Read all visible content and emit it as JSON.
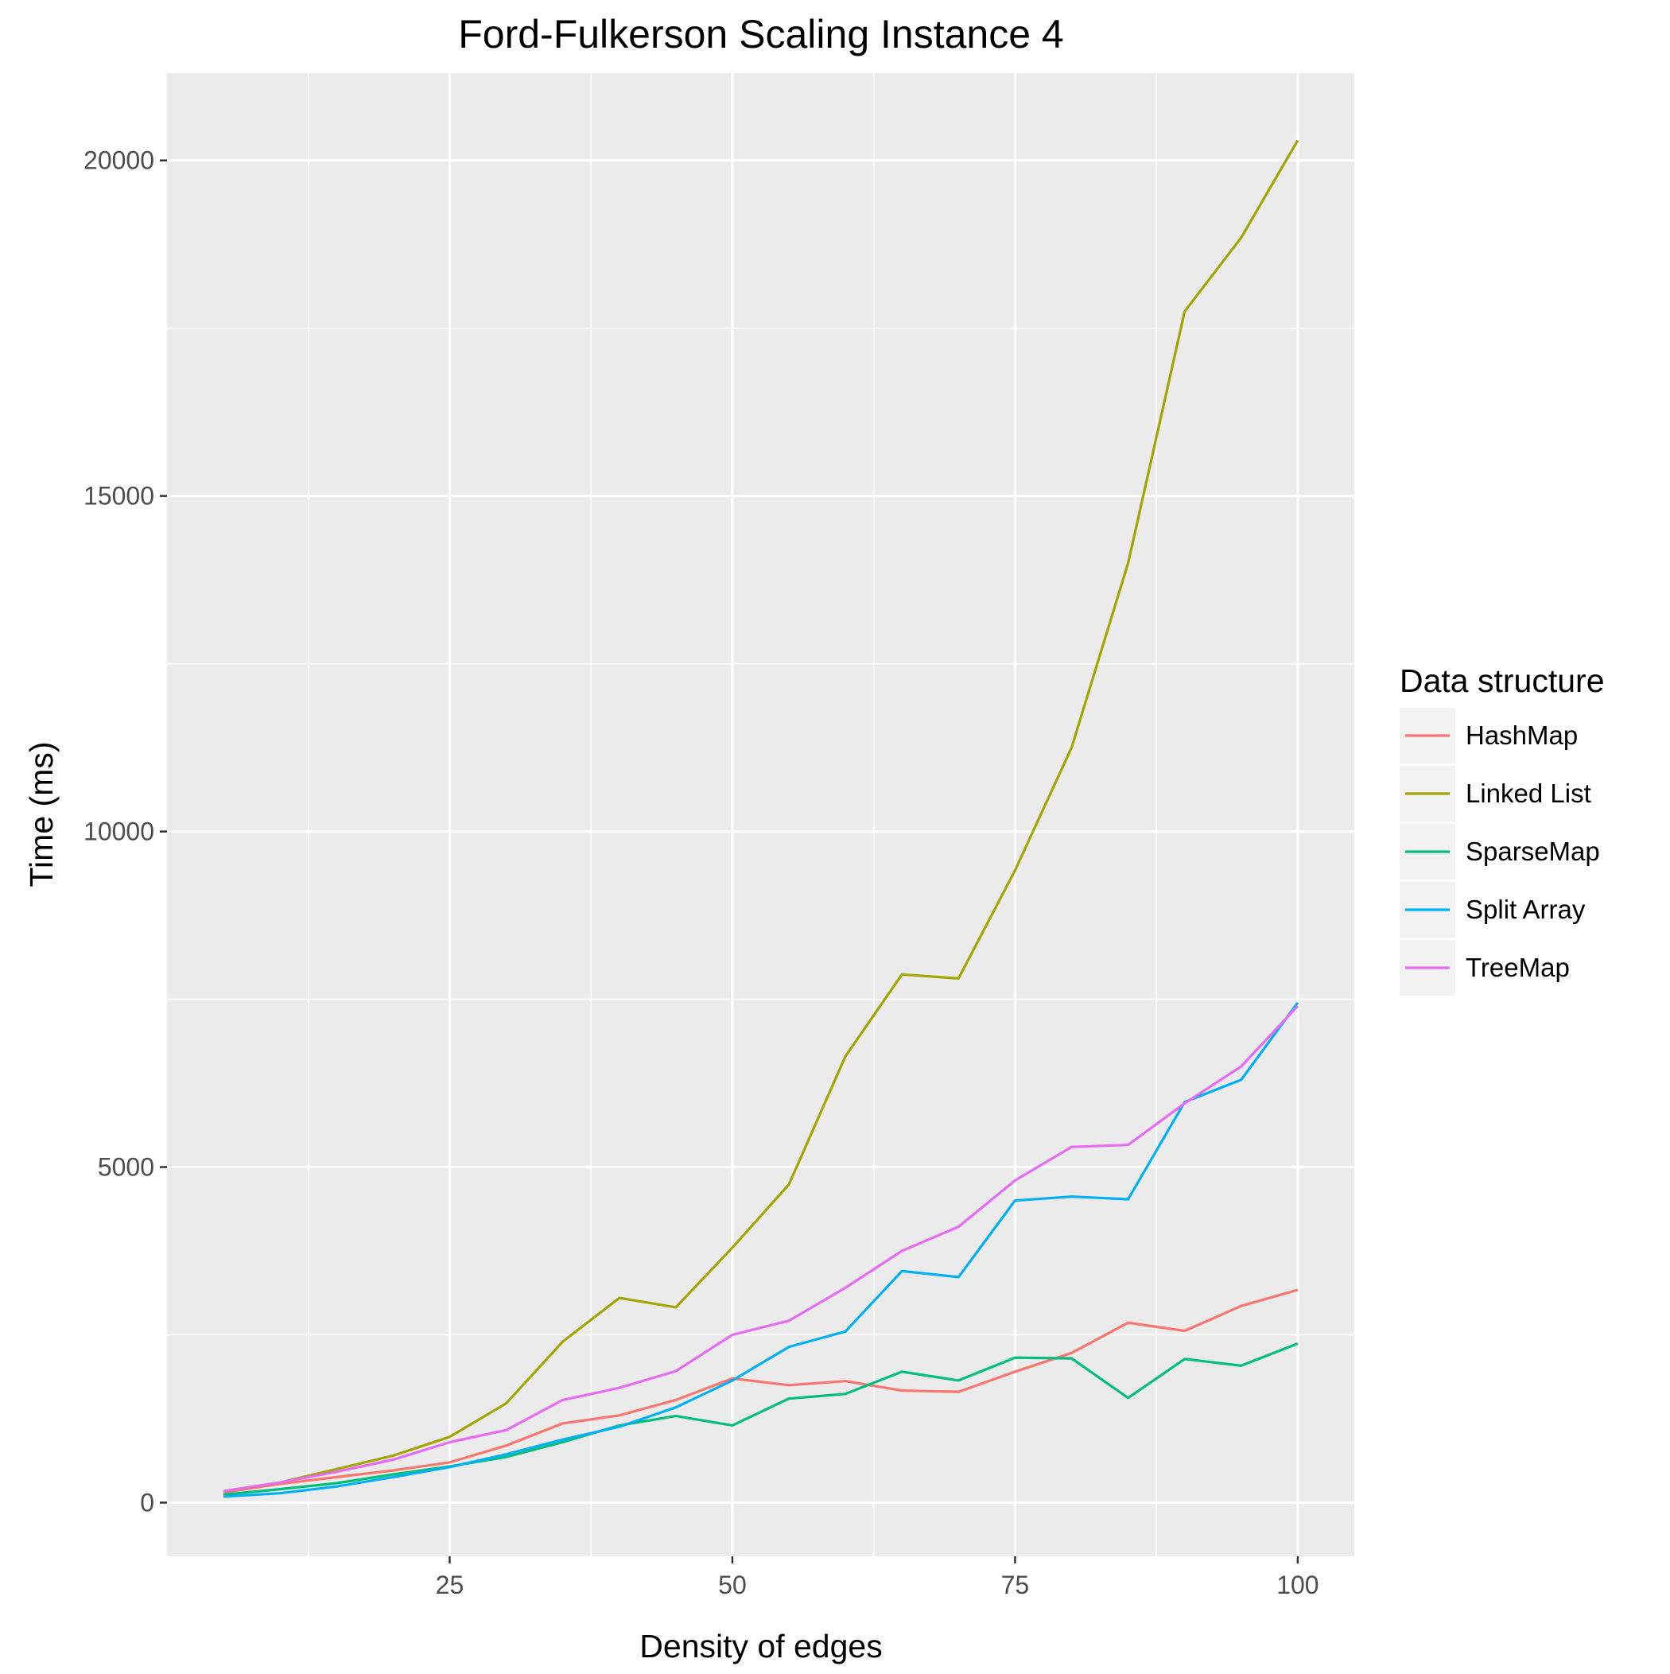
{
  "chart_data": {
    "type": "line",
    "title": "Ford-Fulkerson Scaling Instance 4",
    "xlabel": "Density of edges",
    "ylabel": "Time (ms)",
    "xlim": [
      0,
      105
    ],
    "ylim": [
      -800,
      21300
    ],
    "x_ticks": [
      25,
      50,
      75,
      100
    ],
    "y_ticks": [
      0,
      5000,
      10000,
      15000,
      20000
    ],
    "x_tick_labels": [
      "25",
      "50",
      "75",
      "100"
    ],
    "y_tick_labels": [
      "0",
      "5000",
      "10000",
      "15000",
      "20000"
    ],
    "grid": true,
    "legend": {
      "title": "Data structure",
      "position": "right"
    },
    "x": [
      5,
      10,
      15,
      20,
      25,
      30,
      35,
      40,
      45,
      50,
      55,
      60,
      65,
      70,
      75,
      80,
      85,
      90,
      95,
      100
    ],
    "series": [
      {
        "name": "HashMap",
        "color": "#F8766D",
        "values": [
          150,
          280,
          380,
          480,
          600,
          850,
          1180,
          1300,
          1530,
          1850,
          1750,
          1810,
          1670,
          1650,
          1950,
          2230,
          2680,
          2560,
          2930,
          3170
        ]
      },
      {
        "name": "Linked List",
        "color": "#A3A500",
        "values": [
          170,
          300,
          500,
          700,
          980,
          1480,
          2400,
          3050,
          2910,
          3800,
          4740,
          6650,
          7870,
          7810,
          9420,
          11250,
          14000,
          17750,
          18850,
          20300
        ]
      },
      {
        "name": "SparseMap",
        "color": "#00BF7D",
        "values": [
          120,
          200,
          290,
          420,
          540,
          680,
          900,
          1150,
          1290,
          1150,
          1550,
          1620,
          1950,
          1820,
          2160,
          2150,
          1560,
          2140,
          2040,
          2370
        ]
      },
      {
        "name": "Split Array",
        "color": "#00B0F6",
        "values": [
          90,
          140,
          240,
          380,
          530,
          720,
          940,
          1130,
          1420,
          1820,
          2320,
          2550,
          3450,
          3360,
          4500,
          4560,
          4520,
          5970,
          6300,
          7450
        ]
      },
      {
        "name": "TreeMap",
        "color": "#E76BF3",
        "values": [
          170,
          300,
          460,
          640,
          900,
          1080,
          1530,
          1710,
          1960,
          2500,
          2710,
          3200,
          3750,
          4110,
          4800,
          5300,
          5330,
          5950,
          6500,
          7400
        ]
      }
    ]
  }
}
